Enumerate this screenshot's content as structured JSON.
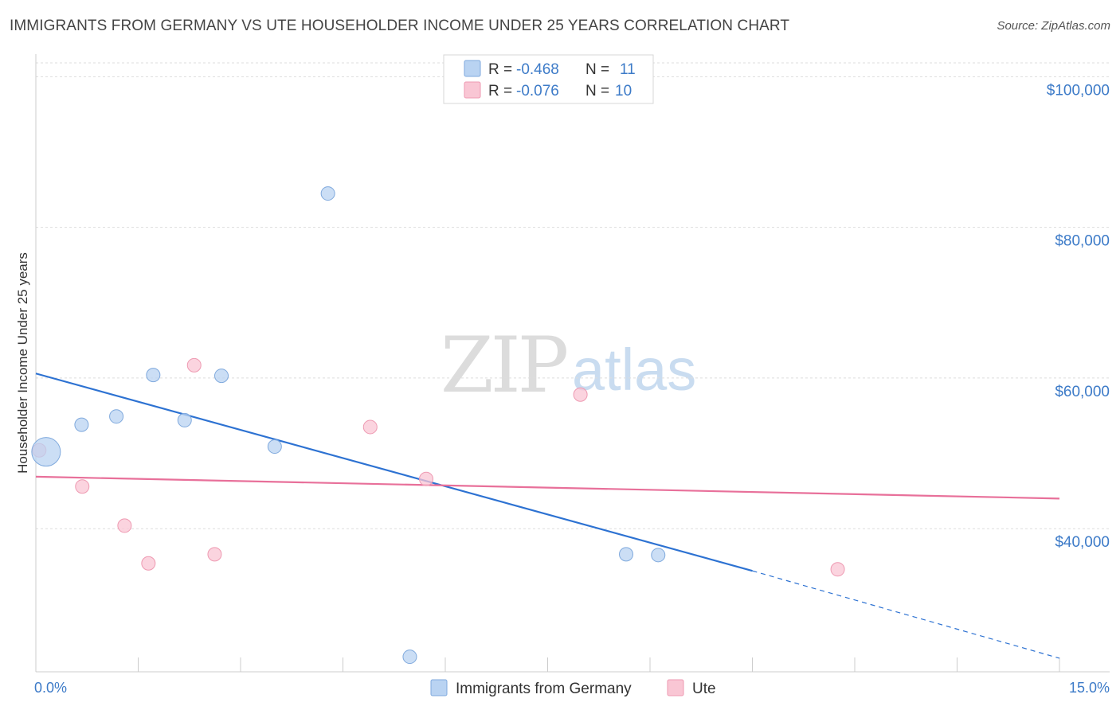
{
  "header": {
    "title": "IMMIGRANTS FROM GERMANY VS UTE HOUSEHOLDER INCOME UNDER 25 YEARS CORRELATION CHART",
    "source": "Source: ZipAtlas.com"
  },
  "watermark": {
    "zip": "ZIP",
    "atlas": "atlas"
  },
  "colors": {
    "blue_fill": "#b9d3f2",
    "blue_stroke": "#7fa9dd",
    "blue_line": "#2d72d2",
    "pink_fill": "#f9c6d4",
    "pink_stroke": "#ee9ab2",
    "pink_line": "#e8709a",
    "grid": "#dddddd",
    "axis_text": "#3d7bc8"
  },
  "chart_data": {
    "type": "scatter",
    "title": "IMMIGRANTS FROM GERMANY VS UTE HOUSEHOLDER INCOME UNDER 25 YEARS CORRELATION CHART",
    "xlabel": "",
    "ylabel": "Householder Income Under 25 years",
    "xlim": [
      0,
      15
    ],
    "ylim": [
      21000,
      103000
    ],
    "x_ticks": [
      {
        "value": 0,
        "label": "0.0%"
      },
      {
        "value": 15,
        "label": "15.0%"
      }
    ],
    "x_minor_ticks": [
      1.5,
      3.0,
      4.5,
      6.0,
      7.5,
      9.0,
      10.5,
      12.0,
      13.5
    ],
    "y_ticks": [
      {
        "value": 40000,
        "label": "$40,000"
      },
      {
        "value": 60000,
        "label": "$60,000"
      },
      {
        "value": 80000,
        "label": "$80,000"
      },
      {
        "value": 100000,
        "label": "$100,000"
      }
    ],
    "grid": true,
    "legend": {
      "position": "top-center",
      "entries": [
        {
          "series": "Immigrants from Germany",
          "r_label": "R =",
          "r_value": "-0.468",
          "n_label": "N =",
          "n_value": "11"
        },
        {
          "series": "Ute",
          "r_label": "R =",
          "r_value": "-0.076",
          "n_label": "N =",
          "n_value": "10"
        }
      ]
    },
    "series": [
      {
        "name": "Immigrants from Germany",
        "color": "#b9d3f2",
        "points": [
          {
            "x": 0.15,
            "y": 50200,
            "size": "large"
          },
          {
            "x": 0.67,
            "y": 53800
          },
          {
            "x": 1.18,
            "y": 54900
          },
          {
            "x": 1.72,
            "y": 60400
          },
          {
            "x": 2.18,
            "y": 54400
          },
          {
            "x": 2.72,
            "y": 60300
          },
          {
            "x": 3.5,
            "y": 50900
          },
          {
            "x": 4.28,
            "y": 84500
          },
          {
            "x": 5.48,
            "y": 23000
          },
          {
            "x": 8.65,
            "y": 36600
          },
          {
            "x": 9.12,
            "y": 36500
          }
        ],
        "trend": {
          "x_start": 0.0,
          "y_start": 60600,
          "x_solid_end": 10.5,
          "y_solid_end": 34400,
          "x_dash_end": 15.0,
          "y_dash_end": 22800
        }
      },
      {
        "name": "Ute",
        "color": "#f9c6d4",
        "points": [
          {
            "x": 0.05,
            "y": 50400
          },
          {
            "x": 0.68,
            "y": 45600
          },
          {
            "x": 1.3,
            "y": 40400
          },
          {
            "x": 1.65,
            "y": 35400
          },
          {
            "x": 2.32,
            "y": 61700
          },
          {
            "x": 2.62,
            "y": 36600
          },
          {
            "x": 4.9,
            "y": 53500
          },
          {
            "x": 5.72,
            "y": 46600
          },
          {
            "x": 7.98,
            "y": 57800
          },
          {
            "x": 11.75,
            "y": 34600
          }
        ],
        "trend": {
          "x_start": 0.0,
          "y_start": 46900,
          "x_end": 15.0,
          "y_end": 44000
        }
      }
    ]
  }
}
